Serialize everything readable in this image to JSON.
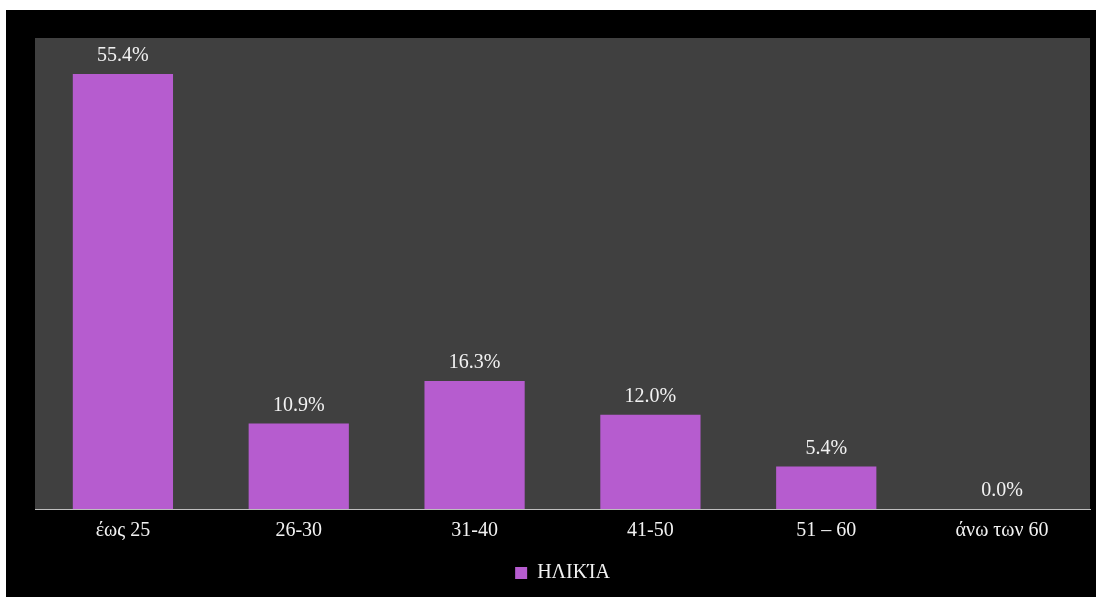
{
  "chart_data": {
    "type": "bar",
    "categories": [
      "έως 25",
      "26-30",
      "31-40",
      "41-50",
      "51 – 60",
      "άνω των 60"
    ],
    "series": [
      {
        "name": "ΗΛΙΚΊΑ",
        "color": "#b65ccf",
        "values": [
          55.4,
          10.9,
          16.3,
          12.0,
          5.4,
          0.0
        ],
        "value_labels": [
          "55.4%",
          "10.9%",
          "16.3%",
          "12.0%",
          "5.4%",
          "0.0%"
        ]
      }
    ],
    "legend": "bottom",
    "grid": false
  }
}
